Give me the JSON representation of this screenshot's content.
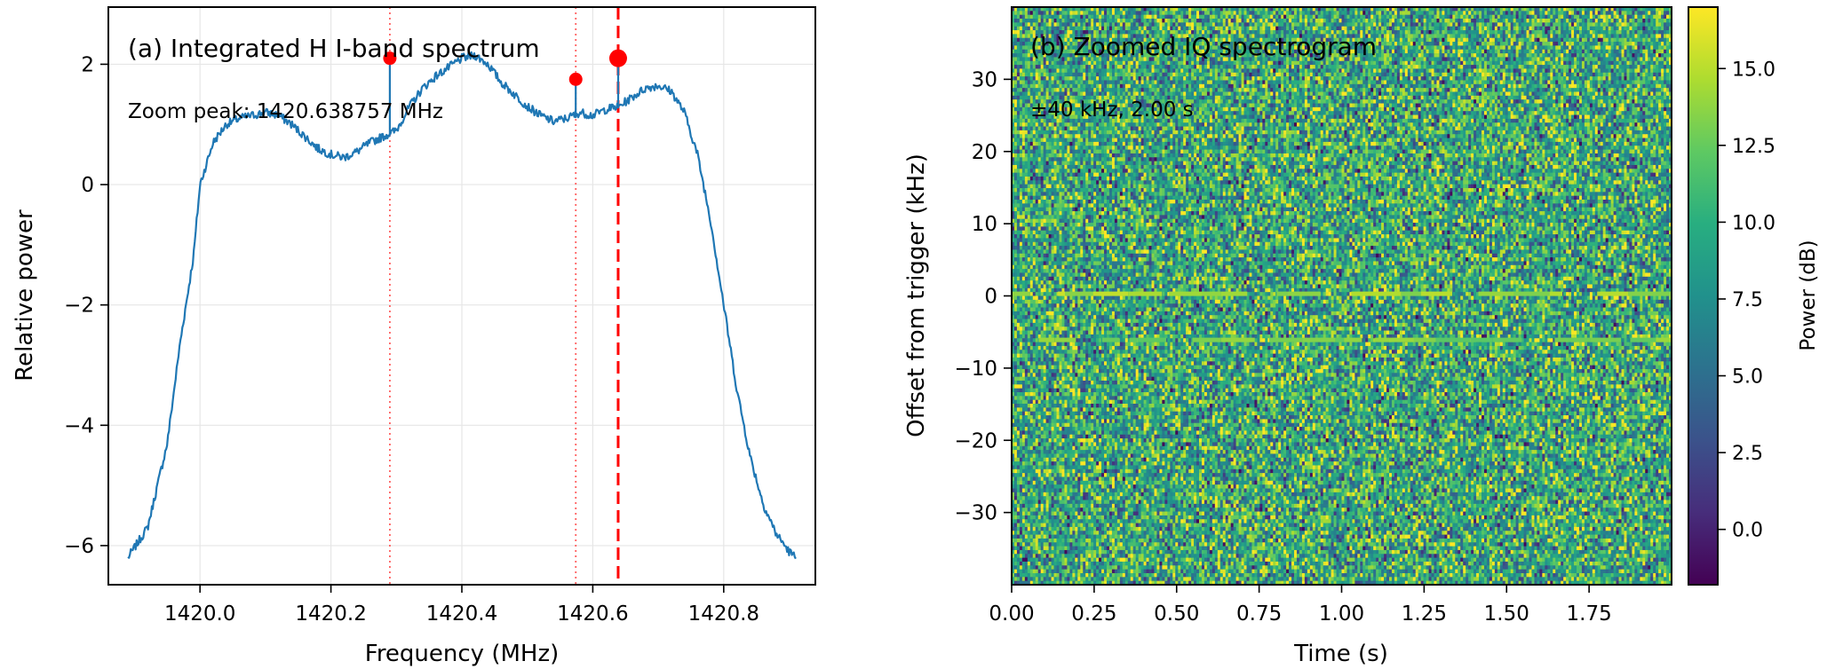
{
  "chart_data": [
    {
      "type": "line",
      "title": "(a) Integrated H I-band spectrum",
      "annotation": "Zoom peak: 1420.638757 MHz",
      "xlabel": "Frequency (MHz)",
      "ylabel": "Relative power",
      "xlim": [
        1419.86,
        1420.94
      ],
      "ylim": [
        -6.65,
        2.95
      ],
      "xticks": [
        1420.0,
        1420.2,
        1420.4,
        1420.6,
        1420.8
      ],
      "xtick_labels": [
        "1420.0",
        "1420.2",
        "1420.4",
        "1420.6",
        "1420.8"
      ],
      "yticks": [
        -6,
        -4,
        -2,
        0,
        2
      ],
      "ytick_labels": [
        "−6",
        "−4",
        "−2",
        "0",
        "2"
      ],
      "grid": true,
      "series": [
        {
          "color": "#1f77b4",
          "x": [
            1419.89,
            1419.92,
            1419.95,
            1419.97,
            1419.99,
            1420.0,
            1420.02,
            1420.04,
            1420.06,
            1420.08,
            1420.1,
            1420.12,
            1420.14,
            1420.16,
            1420.18,
            1420.2,
            1420.22,
            1420.24,
            1420.26,
            1420.28,
            1420.3,
            1420.32,
            1420.34,
            1420.36,
            1420.38,
            1420.4,
            1420.42,
            1420.44,
            1420.46,
            1420.48,
            1420.5,
            1420.52,
            1420.54,
            1420.56,
            1420.58,
            1420.6,
            1420.62,
            1420.64,
            1420.66,
            1420.68,
            1420.7,
            1420.72,
            1420.74,
            1420.76,
            1420.78,
            1420.8,
            1420.82,
            1420.84,
            1420.86,
            1420.88,
            1420.9,
            1420.91
          ],
          "y": [
            -6.2,
            -5.7,
            -4.3,
            -2.6,
            -1.2,
            0.0,
            0.7,
            1.0,
            1.1,
            1.15,
            1.2,
            1.15,
            1.0,
            0.8,
            0.6,
            0.5,
            0.45,
            0.55,
            0.7,
            0.8,
            0.9,
            1.3,
            1.6,
            1.8,
            1.95,
            2.1,
            2.15,
            2.0,
            1.7,
            1.5,
            1.3,
            1.15,
            1.05,
            1.1,
            1.2,
            1.15,
            1.25,
            1.3,
            1.45,
            1.6,
            1.65,
            1.55,
            1.2,
            0.5,
            -0.6,
            -2.0,
            -3.4,
            -4.5,
            -5.3,
            -5.8,
            -6.1,
            -6.2
          ]
        }
      ],
      "spikes": [
        {
          "x": 1420.29,
          "base": 0.85,
          "peak": 2.1
        },
        {
          "x": 1420.574,
          "base": 1.12,
          "peak": 1.75
        },
        {
          "x": 1420.638757,
          "base": 1.28,
          "peak": 2.1
        }
      ],
      "markers": [
        {
          "x": 1420.29,
          "y": 2.1,
          "size": "small"
        },
        {
          "x": 1420.574,
          "y": 1.75,
          "size": "small"
        },
        {
          "x": 1420.638757,
          "y": 2.1,
          "size": "large"
        }
      ],
      "vlines": [
        {
          "x": 1420.29,
          "style": "dotted"
        },
        {
          "x": 1420.574,
          "style": "dotted"
        },
        {
          "x": 1420.638757,
          "style": "dashed"
        }
      ],
      "colors": {
        "line": "#1f77b4",
        "marker": "#ff0000"
      }
    },
    {
      "type": "heatmap",
      "title": "(b) Zoomed IQ spectrogram",
      "annotation": "±40 kHz, 2.00 s",
      "xlabel": "Time (s)",
      "ylabel": "Offset from trigger (kHz)",
      "xlim": [
        0.0,
        2.0
      ],
      "ylim": [
        -40,
        40
      ],
      "xticks": [
        0.0,
        0.25,
        0.5,
        0.75,
        1.0,
        1.25,
        1.5,
        1.75
      ],
      "xtick_labels": [
        "0.00",
        "0.25",
        "0.50",
        "0.75",
        "1.00",
        "1.25",
        "1.50",
        "1.75"
      ],
      "yticks": [
        -30,
        -20,
        -10,
        0,
        10,
        20,
        30
      ],
      "ytick_labels": [
        "−30",
        "−20",
        "−10",
        "0",
        "10",
        "20",
        "30"
      ],
      "colormap": "viridis",
      "colorbar": {
        "label": "Power (dB)",
        "vmin": -1.8,
        "vmax": 17.0,
        "ticks": [
          0.0,
          2.5,
          5.0,
          7.5,
          10.0,
          12.5,
          15.0
        ],
        "tick_labels": [
          "0.0",
          "2.5",
          "5.0",
          "7.5",
          "10.0",
          "12.5",
          "15.0"
        ]
      },
      "background": "noise",
      "lines": [
        {
          "offset_khz": 0.3,
          "level_db": 15.5
        },
        {
          "offset_khz": -6.1,
          "level_db": 14.5
        }
      ]
    }
  ]
}
